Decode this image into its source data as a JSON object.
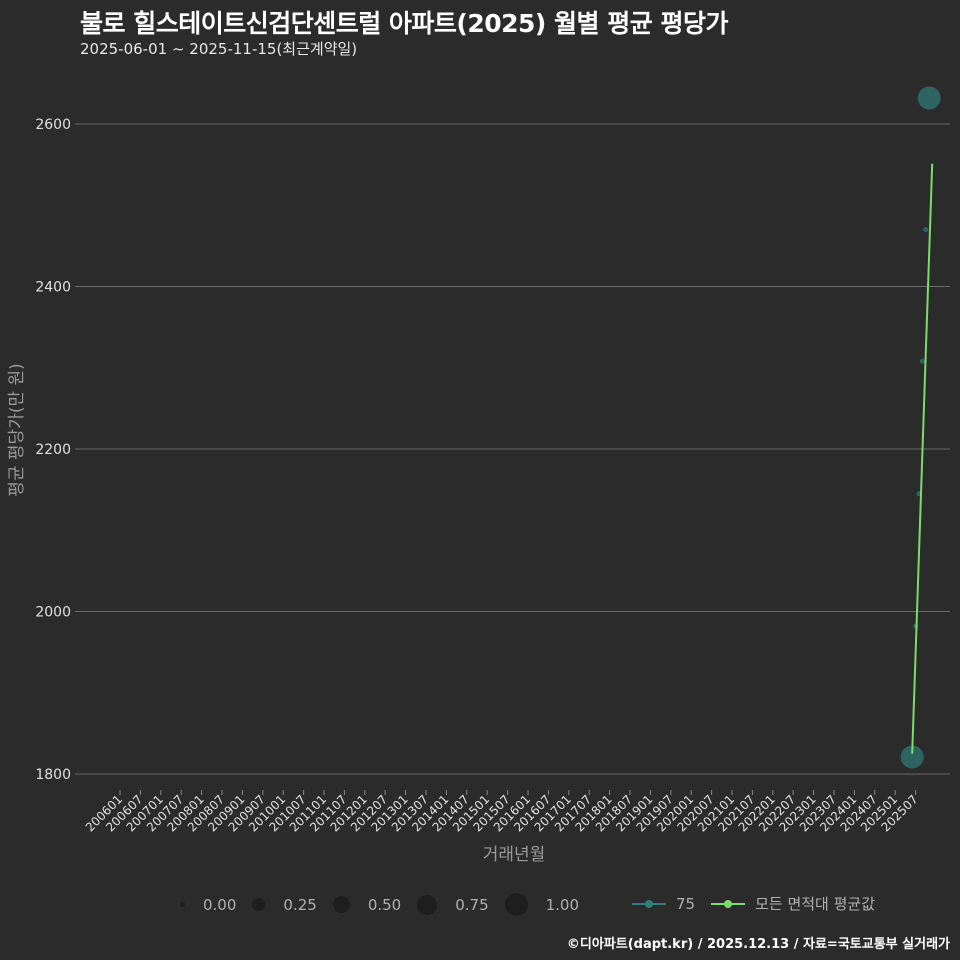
{
  "header": {
    "title": "불로 힐스테이트신검단센트럴 아파트(2025) 월별 평균 평당가",
    "subtitle": "2025-06-01 ~ 2025-11-15(최근계약일)"
  },
  "footer": {
    "credit": "©디아파트(dapt.kr) / 2025.12.13 / 자료=국토교통부 실거래가"
  },
  "legend": {
    "size_title": "",
    "sizes": [
      {
        "label": "0.00",
        "d": 5
      },
      {
        "label": "0.25",
        "d": 13
      },
      {
        "label": "0.50",
        "d": 17
      },
      {
        "label": "0.75",
        "d": 20
      },
      {
        "label": "1.00",
        "d": 23
      }
    ],
    "lines": [
      {
        "label": "75",
        "color": "#2e7f7a"
      },
      {
        "label": "모든 면적대 평균값",
        "color": "#7cdc6a"
      }
    ]
  },
  "colors": {
    "background": "#2b2b2b",
    "grid": "#6a6a6a",
    "series_75": "#2e6f6c",
    "avg_line": "#7cdc6a"
  },
  "chart_data": {
    "type": "line",
    "title": "불로 힐스테이트신검단센트럴 아파트(2025) 월별 평균 평당가",
    "subtitle": "2025-06-01 ~ 2025-11-15(최근계약일)",
    "xlabel": "거래년월",
    "ylabel": "평균 평당가(만 원)",
    "ylim": [
      1780,
      2650
    ],
    "yticks": [
      1800,
      2000,
      2200,
      2400,
      2600
    ],
    "xticks": [
      "200601",
      "200607",
      "200701",
      "200707",
      "200801",
      "200807",
      "200901",
      "200907",
      "201001",
      "201007",
      "201101",
      "201107",
      "201201",
      "201207",
      "201301",
      "201307",
      "201401",
      "201407",
      "201501",
      "201507",
      "201601",
      "201607",
      "201701",
      "201707",
      "201801",
      "201807",
      "201901",
      "201907",
      "202001",
      "202007",
      "202101",
      "202107",
      "202201",
      "202207",
      "202301",
      "202307",
      "202401",
      "202407",
      "202501",
      "202507"
    ],
    "grid": true,
    "legend_position": "bottom",
    "x": [
      "202506",
      "202507",
      "202508",
      "202509",
      "202510",
      "202511"
    ],
    "series": [
      {
        "name": "75",
        "type": "scatter",
        "values": [
          1821,
          1982,
          2145,
          2308,
          2470,
          2632
        ],
        "sizes": [
          1.0,
          0.05,
          0.05,
          0.05,
          0.05,
          1.0
        ]
      },
      {
        "name": "모든 면적대 평균값",
        "type": "line",
        "values": [
          1825,
          2551
        ],
        "x": [
          "202506",
          "202511"
        ]
      }
    ]
  }
}
